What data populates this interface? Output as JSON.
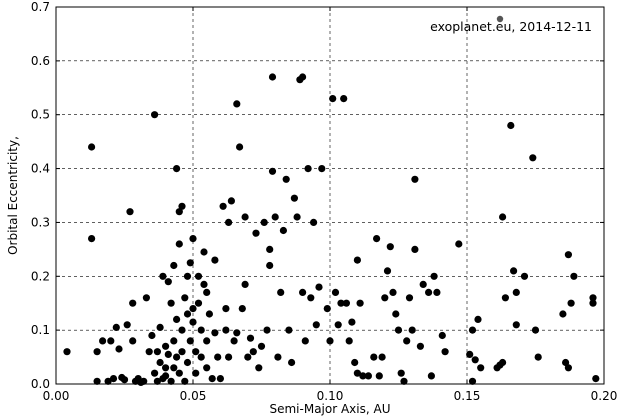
{
  "chart_data": {
    "type": "scatter",
    "title": "",
    "xlabel": "Semi-Major Axis, AU",
    "ylabel": "Orbital Eccentricity,",
    "xlim": [
      0.0,
      0.2
    ],
    "ylim": [
      0.0,
      0.7
    ],
    "x_ticks": [
      "0.00",
      "0.05",
      "0.10",
      "0.15",
      "0.20"
    ],
    "y_ticks": [
      "0.0",
      "0.1",
      "0.2",
      "0.3",
      "0.4",
      "0.5",
      "0.6",
      "0.7"
    ],
    "grid": true,
    "grid_style": "dashed",
    "annotation": "exoplanet.eu, 2014-12-11",
    "colors": {
      "points": "#000000",
      "annotation_marker": "#555555"
    },
    "series": [
      {
        "points": [
          [
            0.004,
            0.06
          ],
          [
            0.013,
            0.44
          ],
          [
            0.013,
            0.27
          ],
          [
            0.015,
            0.005
          ],
          [
            0.015,
            0.06
          ],
          [
            0.017,
            0.08
          ],
          [
            0.019,
            0.005
          ],
          [
            0.02,
            0.08
          ],
          [
            0.021,
            0.01
          ],
          [
            0.022,
            0.105
          ],
          [
            0.023,
            0.065
          ],
          [
            0.024,
            0.012
          ],
          [
            0.025,
            0.008
          ],
          [
            0.026,
            0.11
          ],
          [
            0.027,
            0.32
          ],
          [
            0.028,
            0.15
          ],
          [
            0.028,
            0.08
          ],
          [
            0.029,
            0.005
          ],
          [
            0.03,
            0.01
          ],
          [
            0.031,
            0.003
          ],
          [
            0.032,
            0.005
          ],
          [
            0.033,
            0.16
          ],
          [
            0.034,
            0.06
          ],
          [
            0.035,
            0.09
          ],
          [
            0.036,
            0.5
          ],
          [
            0.036,
            0.02
          ],
          [
            0.037,
            0.06
          ],
          [
            0.037,
            0.005
          ],
          [
            0.038,
            0.105
          ],
          [
            0.038,
            0.04
          ],
          [
            0.039,
            0.01
          ],
          [
            0.039,
            0.2
          ],
          [
            0.04,
            0.07
          ],
          [
            0.04,
            0.03
          ],
          [
            0.04,
            0.015
          ],
          [
            0.041,
            0.055
          ],
          [
            0.041,
            0.19
          ],
          [
            0.042,
            0.005
          ],
          [
            0.042,
            0.15
          ],
          [
            0.043,
            0.03
          ],
          [
            0.043,
            0.08
          ],
          [
            0.043,
            0.22
          ],
          [
            0.044,
            0.4
          ],
          [
            0.044,
            0.05
          ],
          [
            0.044,
            0.12
          ],
          [
            0.045,
            0.26
          ],
          [
            0.045,
            0.32
          ],
          [
            0.045,
            0.02
          ],
          [
            0.046,
            0.33
          ],
          [
            0.046,
            0.1
          ],
          [
            0.046,
            0.06
          ],
          [
            0.047,
            0.16
          ],
          [
            0.047,
            0.005
          ],
          [
            0.048,
            0.13
          ],
          [
            0.048,
            0.04
          ],
          [
            0.048,
            0.2
          ],
          [
            0.049,
            0.225
          ],
          [
            0.049,
            0.08
          ],
          [
            0.05,
            0.27
          ],
          [
            0.05,
            0.14
          ],
          [
            0.05,
            0.115
          ],
          [
            0.051,
            0.02
          ],
          [
            0.051,
            0.06
          ],
          [
            0.052,
            0.2
          ],
          [
            0.052,
            0.15
          ],
          [
            0.053,
            0.1
          ],
          [
            0.053,
            0.05
          ],
          [
            0.054,
            0.245
          ],
          [
            0.054,
            0.185
          ],
          [
            0.055,
            0.17
          ],
          [
            0.055,
            0.03
          ],
          [
            0.055,
            0.08
          ],
          [
            0.056,
            0.13
          ],
          [
            0.057,
            0.01
          ],
          [
            0.058,
            0.23
          ],
          [
            0.058,
            0.095
          ],
          [
            0.059,
            0.05
          ],
          [
            0.06,
            0.01
          ],
          [
            0.061,
            0.33
          ],
          [
            0.062,
            0.14
          ],
          [
            0.062,
            0.1
          ],
          [
            0.063,
            0.3
          ],
          [
            0.063,
            0.05
          ],
          [
            0.064,
            0.34
          ],
          [
            0.065,
            0.08
          ],
          [
            0.066,
            0.52
          ],
          [
            0.066,
            0.095
          ],
          [
            0.067,
            0.44
          ],
          [
            0.068,
            0.14
          ],
          [
            0.069,
            0.31
          ],
          [
            0.069,
            0.185
          ],
          [
            0.07,
            0.05
          ],
          [
            0.071,
            0.085
          ],
          [
            0.072,
            0.06
          ],
          [
            0.073,
            0.28
          ],
          [
            0.074,
            0.03
          ],
          [
            0.075,
            0.07
          ],
          [
            0.076,
            0.3
          ],
          [
            0.077,
            0.1
          ],
          [
            0.078,
            0.25
          ],
          [
            0.078,
            0.22
          ],
          [
            0.079,
            0.57
          ],
          [
            0.079,
            0.395
          ],
          [
            0.08,
            0.31
          ],
          [
            0.081,
            0.05
          ],
          [
            0.082,
            0.17
          ],
          [
            0.083,
            0.285
          ],
          [
            0.084,
            0.38
          ],
          [
            0.085,
            0.1
          ],
          [
            0.086,
            0.04
          ],
          [
            0.087,
            0.345
          ],
          [
            0.088,
            0.31
          ],
          [
            0.089,
            0.565
          ],
          [
            0.09,
            0.57
          ],
          [
            0.09,
            0.17
          ],
          [
            0.091,
            0.08
          ],
          [
            0.092,
            0.4
          ],
          [
            0.093,
            0.16
          ],
          [
            0.094,
            0.3
          ],
          [
            0.095,
            0.11
          ],
          [
            0.096,
            0.18
          ],
          [
            0.097,
            0.4
          ],
          [
            0.099,
            0.14
          ],
          [
            0.1,
            0.08
          ],
          [
            0.101,
            0.53
          ],
          [
            0.102,
            0.17
          ],
          [
            0.103,
            0.11
          ],
          [
            0.104,
            0.15
          ],
          [
            0.105,
            0.53
          ],
          [
            0.106,
            0.15
          ],
          [
            0.107,
            0.08
          ],
          [
            0.108,
            0.115
          ],
          [
            0.109,
            0.04
          ],
          [
            0.11,
            0.23
          ],
          [
            0.11,
            0.02
          ],
          [
            0.111,
            0.15
          ],
          [
            0.112,
            0.015
          ],
          [
            0.114,
            0.015
          ],
          [
            0.116,
            0.05
          ],
          [
            0.117,
            0.27
          ],
          [
            0.118,
            0.015
          ],
          [
            0.119,
            0.05
          ],
          [
            0.12,
            0.16
          ],
          [
            0.121,
            0.21
          ],
          [
            0.122,
            0.255
          ],
          [
            0.123,
            0.17
          ],
          [
            0.124,
            0.13
          ],
          [
            0.125,
            0.1
          ],
          [
            0.126,
            0.02
          ],
          [
            0.127,
            0.005
          ],
          [
            0.128,
            0.08
          ],
          [
            0.129,
            0.16
          ],
          [
            0.13,
            0.1
          ],
          [
            0.131,
            0.38
          ],
          [
            0.131,
            0.25
          ],
          [
            0.133,
            0.07
          ],
          [
            0.134,
            0.185
          ],
          [
            0.136,
            0.17
          ],
          [
            0.137,
            0.015
          ],
          [
            0.138,
            0.2
          ],
          [
            0.139,
            0.17
          ],
          [
            0.141,
            0.09
          ],
          [
            0.142,
            0.06
          ],
          [
            0.147,
            0.26
          ],
          [
            0.151,
            0.055
          ],
          [
            0.152,
            0.005
          ],
          [
            0.152,
            0.1
          ],
          [
            0.153,
            0.045
          ],
          [
            0.154,
            0.12
          ],
          [
            0.155,
            0.03
          ],
          [
            0.161,
            0.03
          ],
          [
            0.162,
            0.035
          ],
          [
            0.163,
            0.04
          ],
          [
            0.163,
            0.31
          ],
          [
            0.164,
            0.16
          ],
          [
            0.166,
            0.48
          ],
          [
            0.167,
            0.21
          ],
          [
            0.168,
            0.17
          ],
          [
            0.168,
            0.11
          ],
          [
            0.171,
            0.2
          ],
          [
            0.174,
            0.42
          ],
          [
            0.175,
            0.1
          ],
          [
            0.176,
            0.05
          ],
          [
            0.185,
            0.13
          ],
          [
            0.186,
            0.04
          ],
          [
            0.187,
            0.24
          ],
          [
            0.187,
            0.03
          ],
          [
            0.188,
            0.15
          ],
          [
            0.189,
            0.2
          ],
          [
            0.196,
            0.16
          ],
          [
            0.196,
            0.15
          ],
          [
            0.197,
            0.01
          ]
        ]
      }
    ]
  }
}
